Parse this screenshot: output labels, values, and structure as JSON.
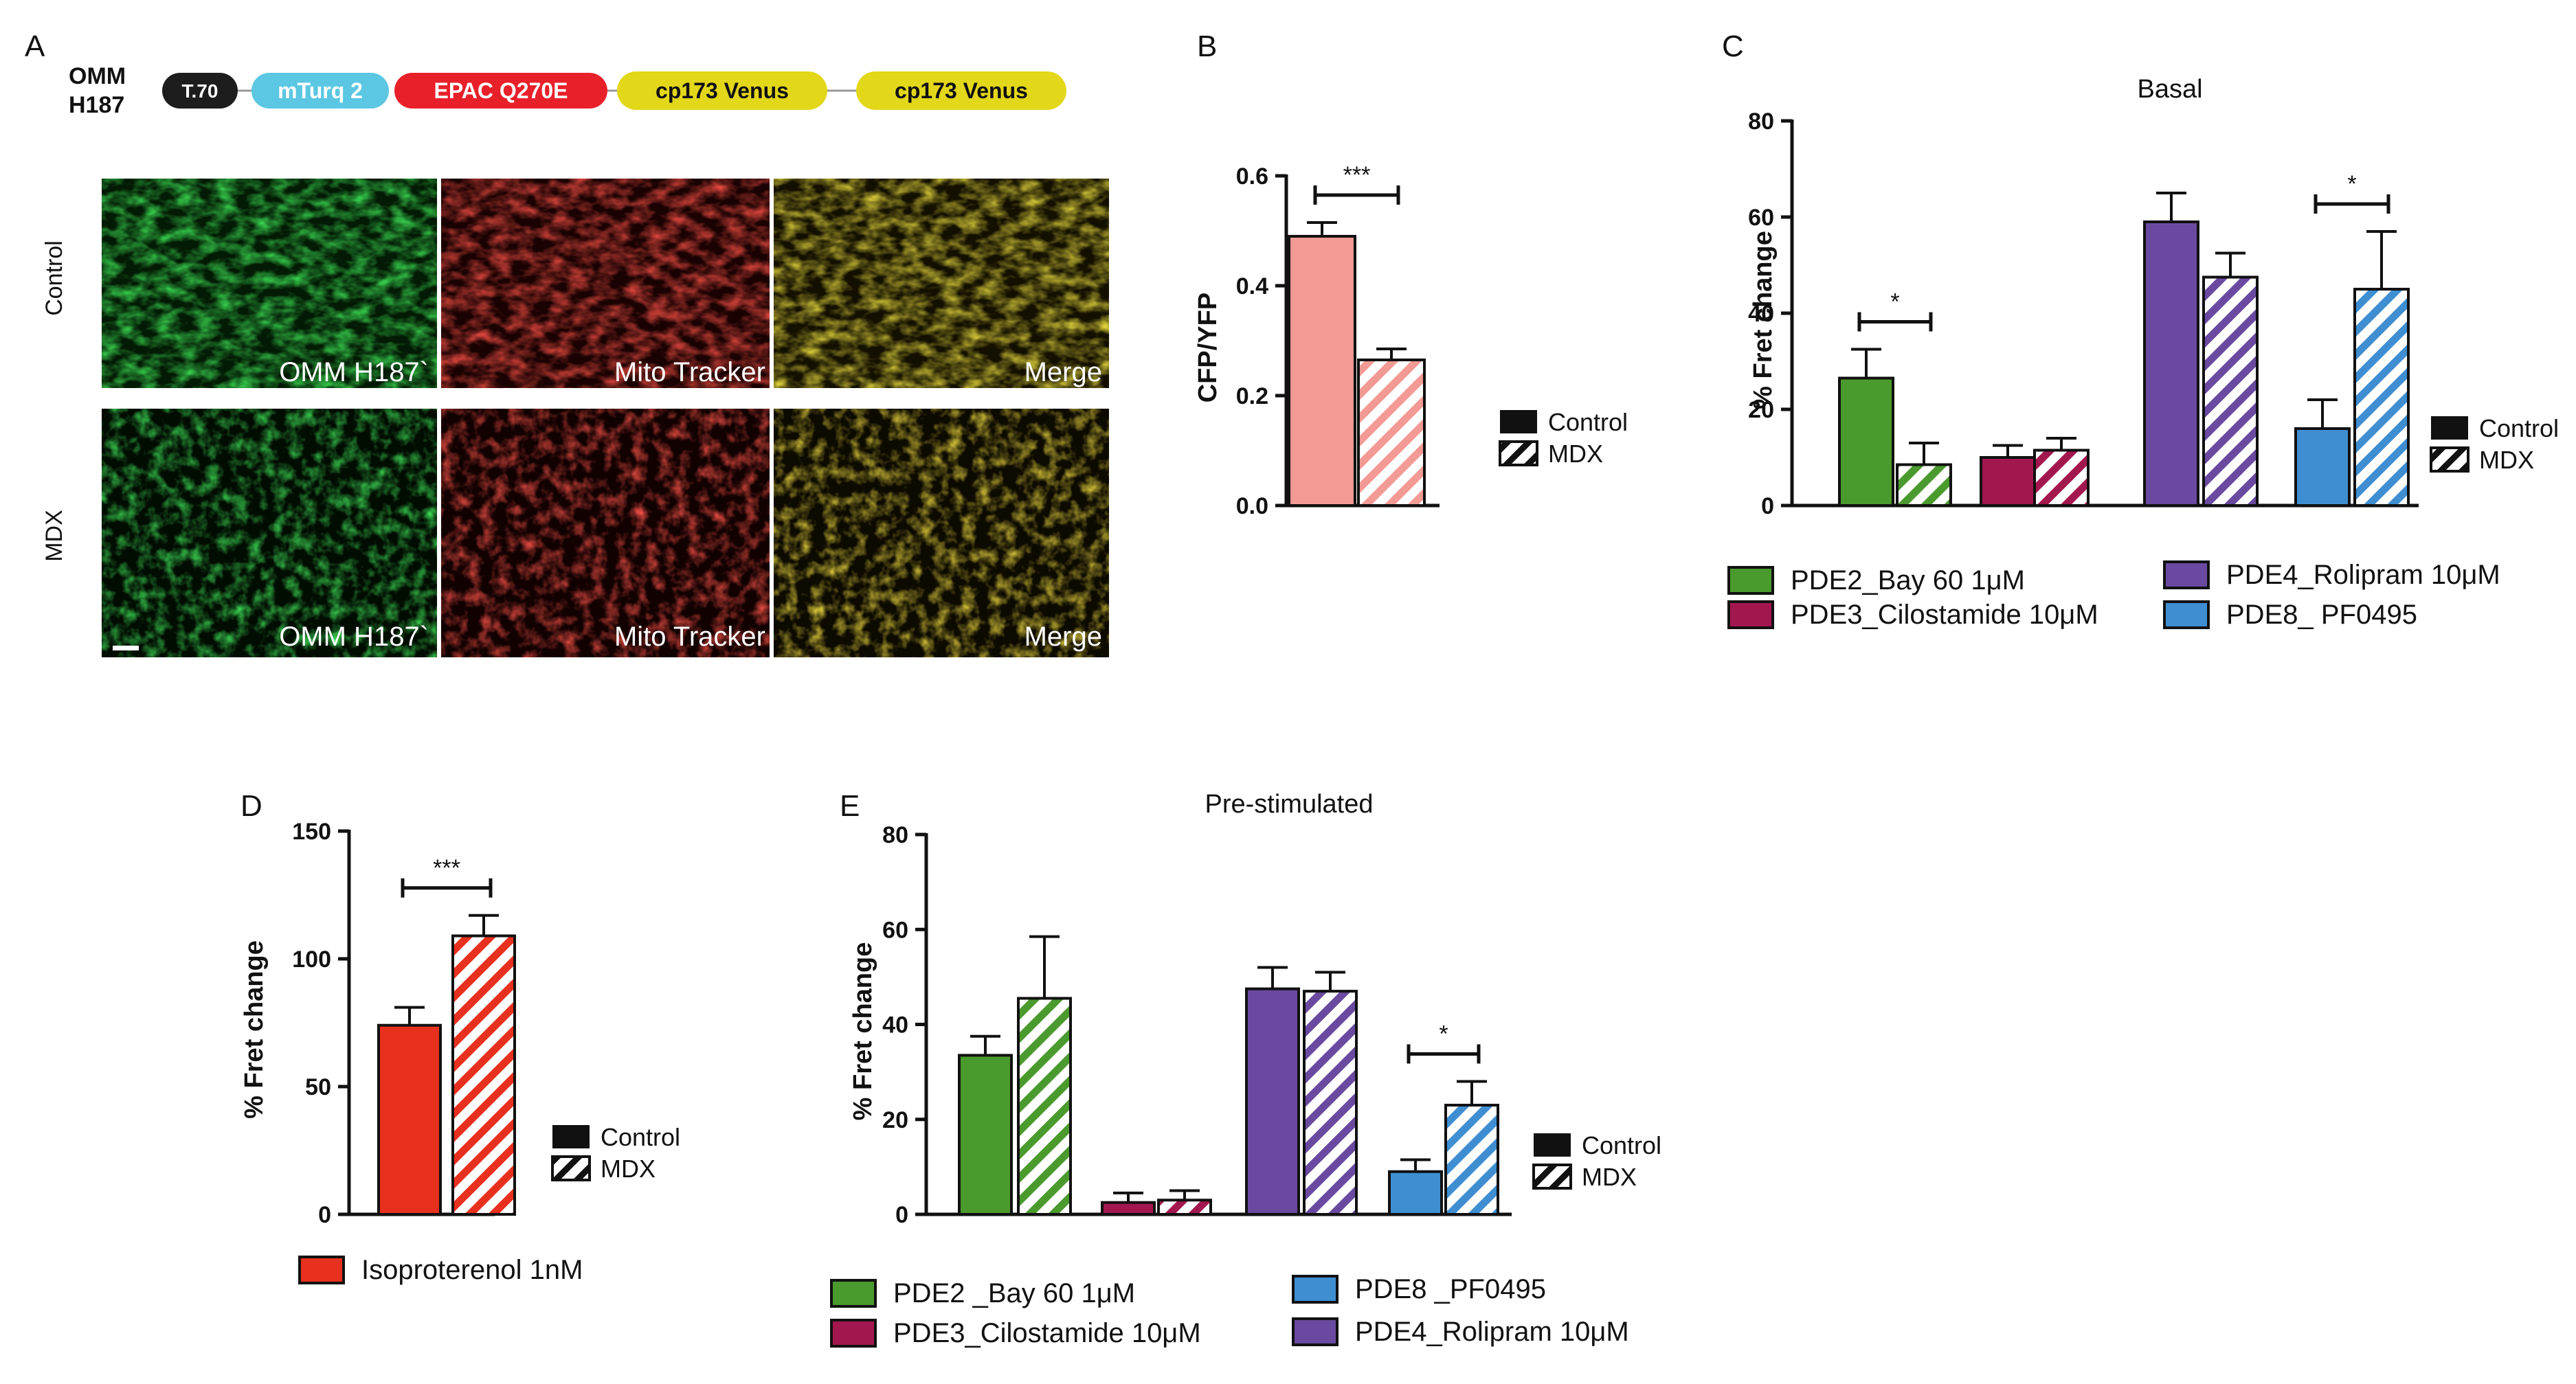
{
  "panel_labels": [
    "A",
    "B",
    "C",
    "D",
    "E"
  ],
  "colors": {
    "pde2": "#4a9a2e",
    "pde3": "#a3174f",
    "pde4": "#6a4aa0",
    "pde8": "#3f8ed1",
    "iso": "#e8301f",
    "ratio": "#f39a94",
    "pill_t70": "#1d1d1d",
    "pill_mturq": "#5bc7e2",
    "pill_epac": "#e8202a",
    "pill_venus": "#e3d71a"
  },
  "construct": {
    "name_line1": "OMM",
    "name_line2": "H187",
    "pills": [
      {
        "label": "T.70",
        "color": "#1d1d1d",
        "text_color": "#ffffff"
      },
      {
        "label": "mTurq 2",
        "color": "#5bc7e2",
        "text_color": "#ffffff"
      },
      {
        "label": "EPAC Q270E",
        "color": "#e8202a",
        "text_color": "#ffffff"
      },
      {
        "label": "cp173 Venus",
        "color": "#e3d71a",
        "text_color": "#111111"
      },
      {
        "label": "cp173 Venus",
        "color": "#e3d71a",
        "text_color": "#111111"
      }
    ]
  },
  "microscopy": {
    "row_labels": [
      "Control",
      "MDX"
    ],
    "columns": [
      "OMM H187`",
      "Mito Tracker",
      "Merge"
    ]
  },
  "chart_data": [
    {
      "id": "B",
      "type": "bar",
      "title": "",
      "ylabel": "CFP/YFP",
      "ylim": [
        0,
        0.6
      ],
      "yticks": [
        "0.0",
        "0.2",
        "0.4",
        "0.6"
      ],
      "legend": [
        "Control",
        "MDX"
      ],
      "series": [
        {
          "name": "Control",
          "values": [
            0.49
          ],
          "errors": [
            0.025
          ]
        },
        {
          "name": "MDX",
          "values": [
            0.265
          ],
          "errors": [
            0.02
          ]
        }
      ],
      "significance": [
        {
          "label": "***",
          "between": "Control vs MDX"
        }
      ]
    },
    {
      "id": "C",
      "type": "bar",
      "title": "Basal",
      "ylabel": "% Fret change",
      "ylim": [
        0,
        80
      ],
      "yticks": [
        "0",
        "20",
        "40",
        "60",
        "80"
      ],
      "legend": [
        "Control",
        "MDX"
      ],
      "categories": [
        "PDE2_Bay 60 1μM",
        "PDE3_Cilostamide 10μM",
        "PDE4_Rolipram 10μM",
        "PDE8_ PF0495"
      ],
      "series": [
        {
          "name": "Control",
          "values": [
            26.5,
            10,
            59,
            16
          ],
          "errors": [
            6,
            2.5,
            6,
            6
          ]
        },
        {
          "name": "MDX",
          "values": [
            8.5,
            11.5,
            47.5,
            45
          ],
          "errors": [
            4.5,
            2.5,
            5,
            12
          ]
        }
      ],
      "significance": [
        {
          "label": "*",
          "category": "PDE2_Bay 60 1μM"
        },
        {
          "label": "*",
          "category": "PDE8_ PF0495"
        }
      ]
    },
    {
      "id": "D",
      "type": "bar",
      "title": "",
      "ylabel": "% Fret change",
      "ylim": [
        0,
        150
      ],
      "yticks": [
        "0",
        "50",
        "100",
        "150"
      ],
      "legend": [
        "Control",
        "MDX"
      ],
      "categories": [
        "Isoproterenol 1nM"
      ],
      "series": [
        {
          "name": "Control",
          "values": [
            74
          ],
          "errors": [
            7
          ]
        },
        {
          "name": "MDX",
          "values": [
            109
          ],
          "errors": [
            8
          ]
        }
      ],
      "significance": [
        {
          "label": "***",
          "category": "Isoproterenol 1nM"
        }
      ]
    },
    {
      "id": "E",
      "type": "bar",
      "title": "Pre-stimulated",
      "ylabel": "% Fret change",
      "ylim": [
        0,
        80
      ],
      "yticks": [
        "0",
        "20",
        "40",
        "60",
        "80"
      ],
      "legend": [
        "Control",
        "MDX"
      ],
      "categories": [
        "PDE2 _Bay 60 1μM",
        "PDE3_Cilostamide 10μM",
        "PDE4_Rolipram 10μM",
        "PDE8 _PF0495"
      ],
      "series": [
        {
          "name": "Control",
          "values": [
            33.5,
            2.5,
            47.5,
            9
          ],
          "errors": [
            4,
            2,
            4.5,
            2.5
          ]
        },
        {
          "name": "MDX",
          "values": [
            45.5,
            3,
            47,
            23
          ],
          "errors": [
            13,
            2,
            4,
            5
          ]
        }
      ],
      "significance": [
        {
          "label": "*",
          "category": "PDE8 _PF0495"
        }
      ]
    }
  ],
  "legends": {
    "C": [
      {
        "label": "PDE2_Bay 60 1μM",
        "color": "#4a9a2e"
      },
      {
        "label": "PDE3_Cilostamide 10μM",
        "color": "#a3174f"
      },
      {
        "label": "PDE4_Rolipram 10μM",
        "color": "#6a4aa0"
      },
      {
        "label": "PDE8_ PF0495",
        "color": "#3f8ed1"
      }
    ],
    "D": [
      {
        "label": "Isoproterenol 1nM",
        "color": "#e8301f"
      }
    ],
    "E": [
      {
        "label": "PDE2 _Bay 60 1μM",
        "color": "#4a9a2e"
      },
      {
        "label": "PDE3_Cilostamide 10μM",
        "color": "#a3174f"
      },
      {
        "label": "PDE8 _PF0495",
        "color": "#3f8ed1"
      },
      {
        "label": "PDE4_Rolipram 10μM",
        "color": "#6a4aa0"
      }
    ]
  }
}
